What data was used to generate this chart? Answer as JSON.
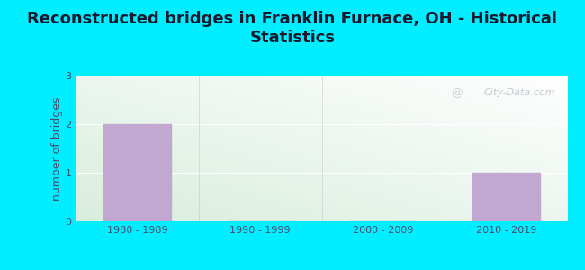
{
  "title": "Reconstructed bridges in Franklin Furnace, OH - Historical\nStatistics",
  "categories": [
    "1980 - 1989",
    "1990 - 1999",
    "2000 - 2009",
    "2010 - 2019"
  ],
  "values": [
    2,
    0,
    0,
    1
  ],
  "bar_color": "#c2a8d0",
  "ylabel": "number of bridges",
  "ylim": [
    0,
    3
  ],
  "yticks": [
    0,
    1,
    2,
    3
  ],
  "background_outer": "#00eeff",
  "plot_bg_topleft": "#d6edd8",
  "plot_bg_topright": "#ffffff",
  "plot_bg_bottomleft": "#b8dfc0",
  "title_color": "#1a1a2e",
  "axis_color": "#4a4a6a",
  "tick_color": "#4a4a6a",
  "watermark": "City-Data.com",
  "title_fontsize": 13,
  "ylabel_fontsize": 9,
  "tick_fontsize": 8
}
